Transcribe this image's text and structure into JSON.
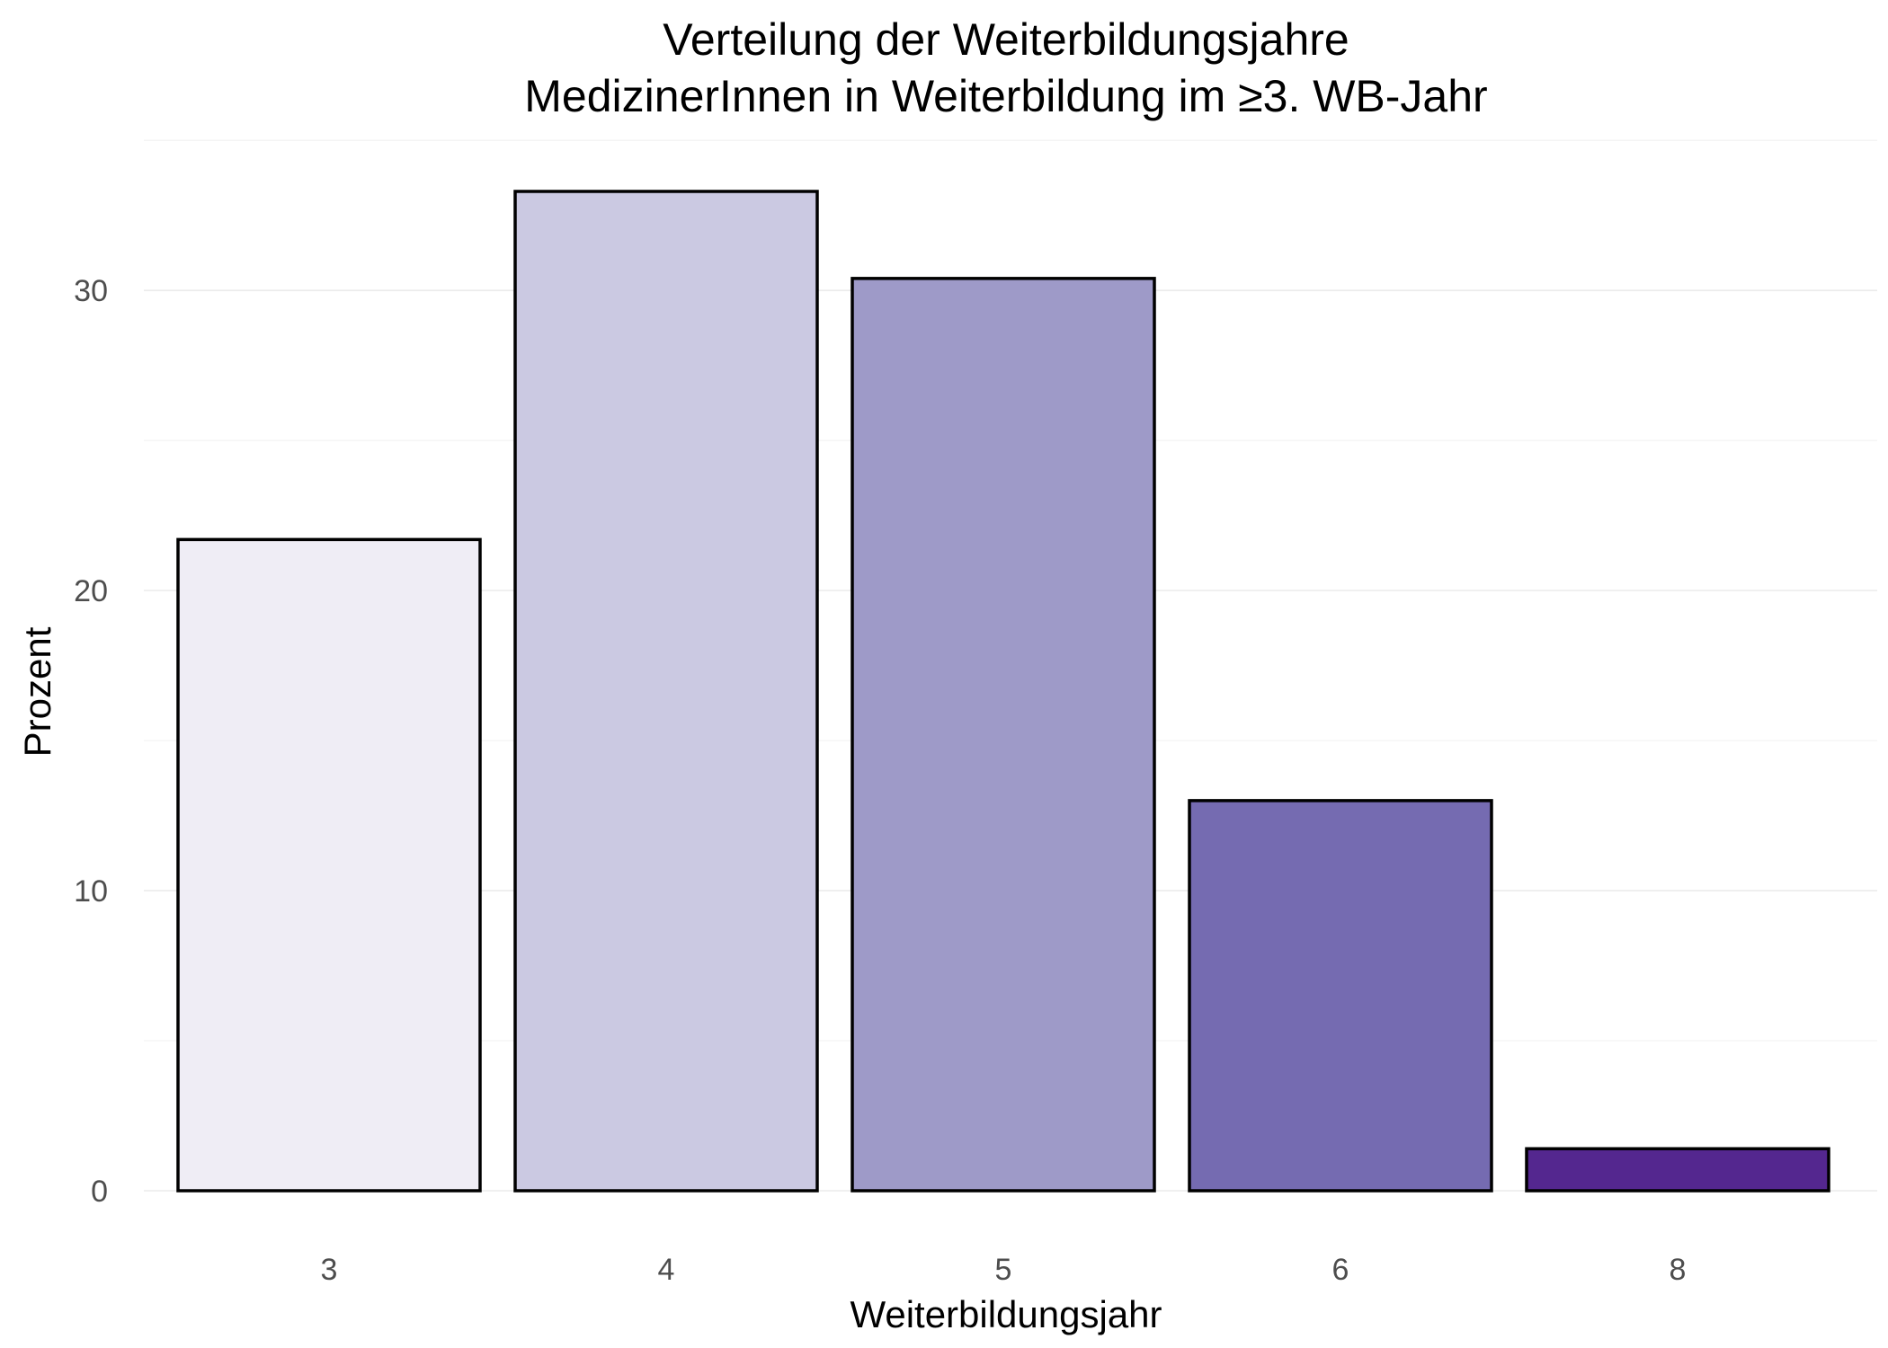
{
  "chart_data": {
    "type": "bar",
    "title": "Verteilung der Weiterbildungsjahre",
    "subtitle": "MedizinerInnen in Weiterbildung im ≥3. WB-Jahr",
    "xlabel": "Weiterbildungsjahr",
    "ylabel": "Prozent",
    "categories": [
      "3",
      "4",
      "5",
      "6",
      "8"
    ],
    "values": [
      21.7,
      33.3,
      30.4,
      13.0,
      1.4
    ],
    "colors": [
      "#efedf5",
      "#cbc9e2",
      "#9e9ac8",
      "#756bb1",
      "#54278f"
    ],
    "bar_outline_color": "#000000",
    "ylim": [
      0,
      33.3
    ],
    "yticks": [
      0,
      10,
      20,
      30
    ],
    "ytick_labels": [
      "0",
      "10",
      "20",
      "30"
    ],
    "grid": true,
    "legend": "none"
  }
}
